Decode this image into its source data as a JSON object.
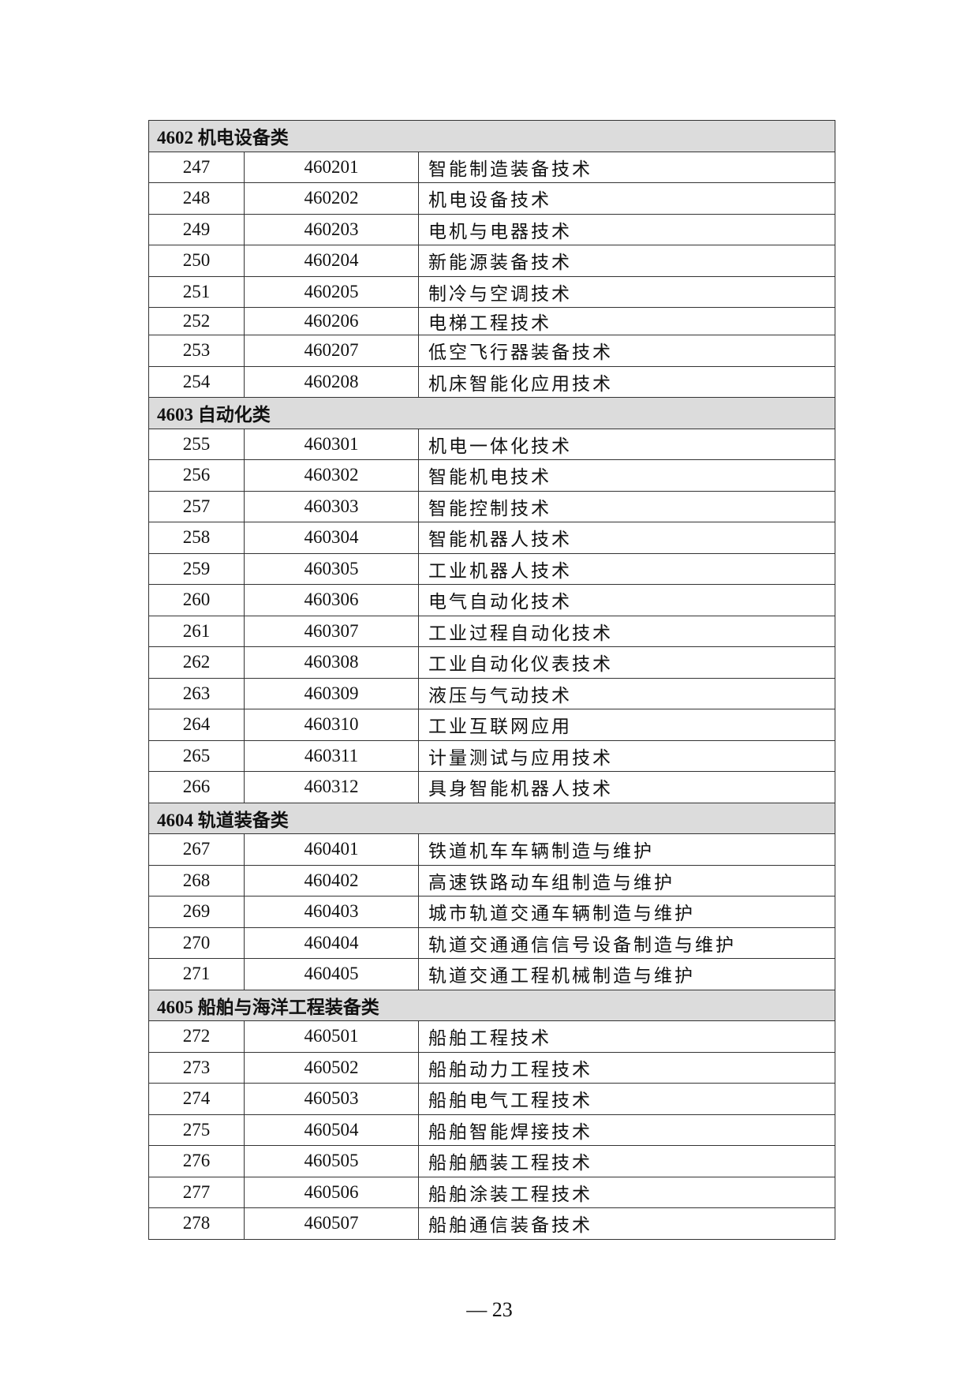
{
  "groups": [
    {
      "title": "4602 机电设备类",
      "rows": [
        {
          "no": "247",
          "code": "460201",
          "name": "智能制造装备技术"
        },
        {
          "no": "248",
          "code": "460202",
          "name": "机电设备技术"
        },
        {
          "no": "249",
          "code": "460203",
          "name": "电机与电器技术"
        },
        {
          "no": "250",
          "code": "460204",
          "name": "新能源装备技术"
        },
        {
          "no": "251",
          "code": "460205",
          "name": "制冷与空调技术"
        },
        {
          "no": "252",
          "code": "460206",
          "name": "电梯工程技术"
        },
        {
          "no": "253",
          "code": "460207",
          "name": "低空飞行器装备技术"
        },
        {
          "no": "254",
          "code": "460208",
          "name": "机床智能化应用技术"
        }
      ]
    },
    {
      "title": "4603 自动化类",
      "rows": [
        {
          "no": "255",
          "code": "460301",
          "name": "机电一体化技术"
        },
        {
          "no": "256",
          "code": "460302",
          "name": "智能机电技术"
        },
        {
          "no": "257",
          "code": "460303",
          "name": "智能控制技术"
        },
        {
          "no": "258",
          "code": "460304",
          "name": "智能机器人技术"
        },
        {
          "no": "259",
          "code": "460305",
          "name": "工业机器人技术"
        },
        {
          "no": "260",
          "code": "460306",
          "name": "电气自动化技术"
        },
        {
          "no": "261",
          "code": "460307",
          "name": "工业过程自动化技术"
        },
        {
          "no": "262",
          "code": "460308",
          "name": "工业自动化仪表技术"
        },
        {
          "no": "263",
          "code": "460309",
          "name": "液压与气动技术"
        },
        {
          "no": "264",
          "code": "460310",
          "name": "工业互联网应用"
        },
        {
          "no": "265",
          "code": "460311",
          "name": "计量测试与应用技术"
        },
        {
          "no": "266",
          "code": "460312",
          "name": "具身智能机器人技术"
        }
      ]
    },
    {
      "title": "4604 轨道装备类",
      "rows": [
        {
          "no": "267",
          "code": "460401",
          "name": "铁道机车车辆制造与维护"
        },
        {
          "no": "268",
          "code": "460402",
          "name": "高速铁路动车组制造与维护"
        },
        {
          "no": "269",
          "code": "460403",
          "name": "城市轨道交通车辆制造与维护"
        },
        {
          "no": "270",
          "code": "460404",
          "name": "轨道交通通信信号设备制造与维护"
        },
        {
          "no": "271",
          "code": "460405",
          "name": "轨道交通工程机械制造与维护"
        }
      ]
    },
    {
      "title": "4605 船舶与海洋工程装备类",
      "rows": [
        {
          "no": "272",
          "code": "460501",
          "name": "船舶工程技术"
        },
        {
          "no": "273",
          "code": "460502",
          "name": "船舶动力工程技术"
        },
        {
          "no": "274",
          "code": "460503",
          "name": "船舶电气工程技术"
        },
        {
          "no": "275",
          "code": "460504",
          "name": "船舶智能焊接技术"
        },
        {
          "no": "276",
          "code": "460505",
          "name": "船舶舾装工程技术"
        },
        {
          "no": "277",
          "code": "460506",
          "name": "船舶涂装工程技术"
        },
        {
          "no": "278",
          "code": "460507",
          "name": "船舶通信装备技术"
        }
      ]
    }
  ],
  "page_number": "— 23"
}
